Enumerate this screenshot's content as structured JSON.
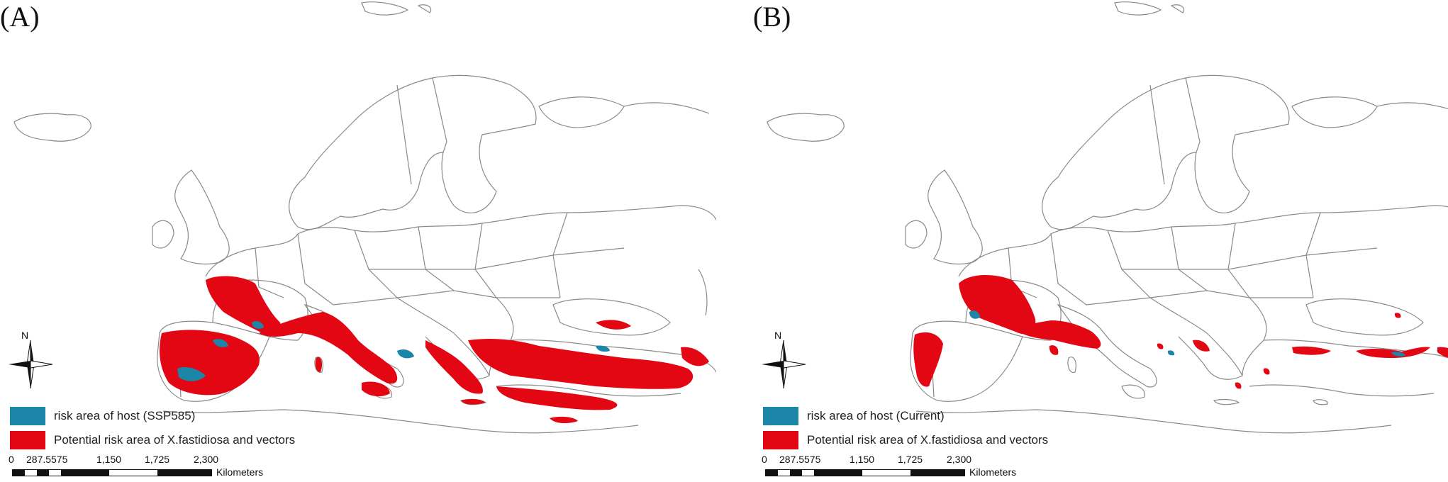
{
  "panels": [
    {
      "label": "(A)",
      "legend": {
        "host_label": "risk area of host (SSP585)",
        "pathogen_label": "Potential risk area of  X.fastidiosa and vectors"
      }
    },
    {
      "label": "(B)",
      "legend": {
        "host_label": "risk area of host (Current)",
        "pathogen_label": "Potential risk area of  X.fastidiosa and vectors"
      }
    }
  ],
  "north_arrow": {
    "label": "N"
  },
  "scale_bar": {
    "ticks": [
      "0",
      "287.5",
      "575",
      "1,150",
      "1,725",
      "2,300"
    ],
    "unit": "Kilometers"
  },
  "colors": {
    "host": "#1c86a8",
    "pathogen": "#e30613",
    "border": "#8a8a8a",
    "text": "#222222"
  }
}
